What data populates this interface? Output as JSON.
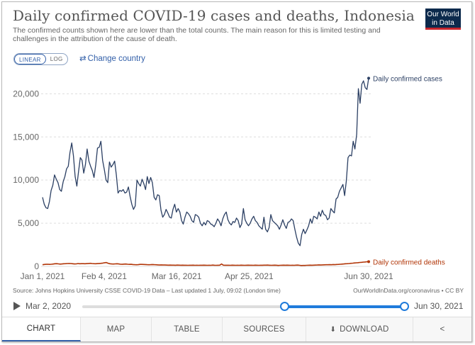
{
  "header": {
    "title": "Daily confirmed COVID-19 cases and deaths, Indonesia",
    "subtitle": "The confirmed counts shown here are lower than the total counts. The main reason for this is limited testing and challenges in the attribution of the cause of death.",
    "logo_line1": "Our World",
    "logo_line2": "in Data"
  },
  "controls": {
    "linear_label": "LINEAR",
    "log_label": "LOG",
    "change_country_label": "Change country",
    "change_country_icon": "swap-arrows-icon"
  },
  "chart_data": {
    "type": "line",
    "title": "Daily confirmed COVID-19 cases and deaths, Indonesia",
    "xlabel": "",
    "ylabel": "",
    "ylim": [
      0,
      22000
    ],
    "y_ticks": [
      "0",
      "5,000",
      "10,000",
      "15,000",
      "20,000"
    ],
    "y_tick_values": [
      0,
      5000,
      10000,
      15000,
      20000
    ],
    "x_ticks": [
      "Jan 1, 2021",
      "Feb 4, 2021",
      "Mar 16, 2021",
      "Apr 25, 2021",
      "Jun 30, 2021"
    ],
    "x_tick_days": [
      0,
      34,
      74,
      114,
      180
    ],
    "x_range_days": [
      0,
      180
    ],
    "grid": "horizontal dashed",
    "legend": "inline labels at line ends (right)",
    "series": [
      {
        "name": "Daily confirmed cases",
        "color": "#2b3f63",
        "values": [
          8000,
          7200,
          6800,
          6700,
          7500,
          8800,
          9400,
          10600,
          10100,
          9700,
          8900,
          8700,
          9800,
          10400,
          11300,
          11600,
          13200,
          14300,
          12800,
          10400,
          9300,
          11000,
          12600,
          12300,
          10800,
          11800,
          13600,
          12200,
          11600,
          11100,
          10300,
          11800,
          13700,
          13800,
          14500,
          12300,
          11200,
          10000,
          9700,
          12100,
          11500,
          11800,
          12200,
          10600,
          8500,
          8800,
          8700,
          8900,
          8500,
          8600,
          9200,
          8100,
          7200,
          6600,
          7000,
          10000,
          9600,
          9300,
          10100,
          9600,
          8900,
          10400,
          9600,
          10300,
          9700,
          8000,
          7700,
          8300,
          8200,
          6500,
          5700,
          6000,
          6600,
          6200,
          5700,
          5600,
          6600,
          7200,
          6300,
          6700,
          6300,
          5300,
          4900,
          5700,
          6300,
          6100,
          5800,
          5300,
          5100,
          6000,
          5900,
          5700,
          5000,
          4700,
          5100,
          4800,
          5300,
          5200,
          4900,
          4800,
          4600,
          5000,
          5500,
          5200,
          4700,
          5500,
          6000,
          6300,
          5400,
          5000,
          4800,
          5200,
          5100,
          5600,
          5300,
          4500,
          4900,
          6700,
          5400,
          5000,
          4700,
          5000,
          5500,
          5800,
          5300,
          5100,
          4700,
          4500,
          4300,
          5700,
          4300,
          4000,
          4500,
          6000,
          5300,
          5100,
          4900,
          4700,
          4300,
          4800,
          5400,
          4800,
          4400,
          5100,
          5200,
          5500,
          5300,
          4300,
          3400,
          2700,
          2400,
          3700,
          4300,
          3800,
          4200,
          4700,
          5500,
          5000,
          5800,
          5700,
          5500,
          6300,
          5800,
          6500,
          6000,
          5900,
          5400,
          5600,
          6700,
          6400,
          6200,
          7800,
          8000,
          8700,
          9100,
          9500,
          8200,
          9900,
          12600,
          12900,
          12800,
          14500,
          13600,
          15300,
          20600,
          18900,
          21100,
          21500,
          20700,
          20500,
          21800
        ],
        "end_label": "Daily confirmed cases"
      },
      {
        "name": "Daily confirmed deaths",
        "color": "#b13507",
        "values": [
          190,
          220,
          240,
          250,
          230,
          250,
          270,
          300,
          310,
          290,
          260,
          280,
          300,
          310,
          330,
          340,
          330,
          300,
          280,
          290,
          330,
          300,
          310,
          310,
          300,
          320,
          340,
          350,
          330,
          310,
          300,
          320,
          340,
          350,
          380,
          420,
          440,
          360,
          300,
          280,
          270,
          290,
          300,
          280,
          250,
          240,
          260,
          270,
          250,
          230,
          240,
          210,
          200,
          190,
          200,
          230,
          230,
          220,
          210,
          200,
          190,
          200,
          210,
          200,
          190,
          170,
          160,
          170,
          160,
          160,
          150,
          140,
          150,
          140,
          140,
          130,
          150,
          140,
          130,
          140,
          130,
          130,
          120,
          130,
          130,
          140,
          120,
          130,
          120,
          130,
          130,
          140,
          130,
          120,
          130,
          120,
          150,
          130,
          120,
          130,
          140,
          280,
          140,
          130,
          130,
          130,
          120,
          140,
          130,
          120,
          130,
          120,
          140,
          130,
          120,
          130,
          140,
          130,
          130,
          120,
          140,
          130,
          120,
          130,
          130,
          140,
          140,
          150,
          130,
          120,
          130,
          140,
          130,
          110,
          120,
          130,
          140,
          130,
          140,
          130,
          120,
          130,
          120,
          140,
          150,
          120,
          100,
          110,
          110,
          120,
          130,
          140,
          130,
          140,
          150,
          160,
          170,
          160,
          170,
          180,
          190,
          190,
          200,
          190,
          210,
          200,
          220,
          230,
          250,
          260,
          280,
          300,
          310,
          330,
          350,
          370,
          390,
          410,
          430,
          450,
          470,
          490,
          510,
          530,
          540
        ],
        "end_label": "Daily confirmed deaths"
      }
    ]
  },
  "footer": {
    "source": "Source: Johns Hopkins University CSSE COVID-19 Data – Last updated 1 July, 09:02 (London time)",
    "license": "OurWorldInData.org/coronavirus • CC BY"
  },
  "timeline": {
    "start_label": "Mar 2, 2020",
    "end_label": "Jun 30, 2021",
    "play_icon": "play-icon",
    "selection_start_fraction": 0.627,
    "selection_end_fraction": 1.0
  },
  "tabs": [
    {
      "label": "CHART",
      "active": true
    },
    {
      "label": "MAP",
      "active": false
    },
    {
      "label": "TABLE",
      "active": false
    },
    {
      "label": "SOURCES",
      "active": false
    },
    {
      "label": "DOWNLOAD",
      "active": false,
      "icon": "download-icon"
    },
    {
      "label": "",
      "active": false,
      "icon": "share-icon"
    }
  ]
}
